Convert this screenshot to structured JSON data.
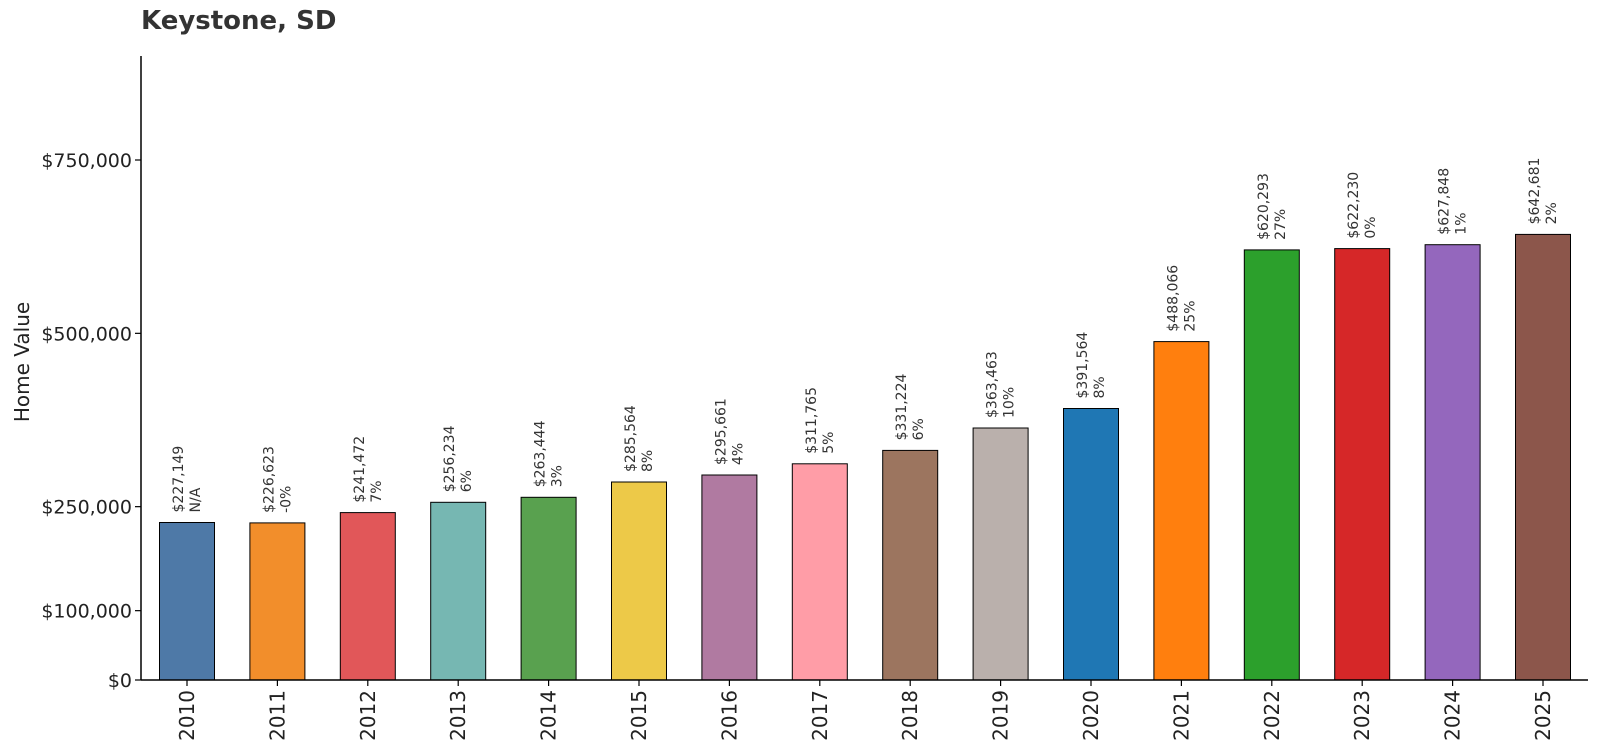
{
  "chart_data": {
    "type": "bar",
    "title": "Keystone, SD",
    "xlabel": "",
    "ylabel": "Home Value",
    "ylim": [
      0,
      900000
    ],
    "yticks": [
      {
        "value": 0,
        "label": "$0"
      },
      {
        "value": 100000,
        "label": "$100,000"
      },
      {
        "value": 250000,
        "label": "$250,000"
      },
      {
        "value": 500000,
        "label": "$500,000"
      },
      {
        "value": 750000,
        "label": "$750,000"
      }
    ],
    "grid": false,
    "legend": "none",
    "categories": [
      "2010",
      "2011",
      "2012",
      "2013",
      "2014",
      "2015",
      "2016",
      "2017",
      "2018",
      "2019",
      "2020",
      "2021",
      "2022",
      "2023",
      "2024",
      "2025"
    ],
    "values": [
      227149,
      226623,
      241472,
      256234,
      263444,
      285564,
      295661,
      311765,
      331224,
      363463,
      391564,
      488066,
      620293,
      622230,
      627848,
      642681
    ],
    "value_labels": [
      "$227,149",
      "$226,623",
      "$241,472",
      "$256,234",
      "$263,444",
      "$285,564",
      "$295,661",
      "$311,765",
      "$331,224",
      "$363,463",
      "$391,564",
      "$488,066",
      "$620,293",
      "$622,230",
      "$627,848",
      "$642,681"
    ],
    "change_labels": [
      "N/A",
      "-0%",
      "7%",
      "6%",
      "3%",
      "8%",
      "4%",
      "5%",
      "6%",
      "10%",
      "8%",
      "25%",
      "27%",
      "0%",
      "1%",
      "2%"
    ],
    "colors": [
      "#4e79a7",
      "#f28e2b",
      "#e15759",
      "#76b7b2",
      "#59a14f",
      "#edc948",
      "#b07aa1",
      "#ff9da7",
      "#9c755f",
      "#bab0ac",
      "#1f77b4",
      "#ff7f0e",
      "#2ca02c",
      "#d62728",
      "#9467bd",
      "#8c564b"
    ]
  }
}
